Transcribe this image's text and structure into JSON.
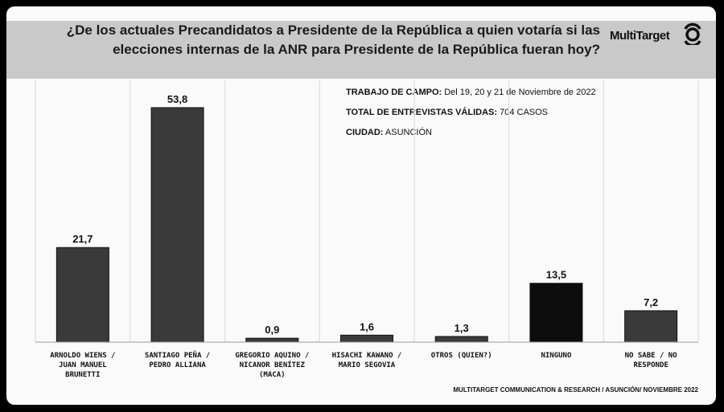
{
  "header": {
    "question": "¿De los actuales Precandidatos a Presidente de la República a quien votaría si las elecciones internas de la ANR para Presidente de la República fueran hoy?",
    "brand": "MultiTarget"
  },
  "meta": [
    {
      "label": "TRABAJO DE CAMPO:",
      "value": "Del 19, 20 y 21  de Noviembre  de  2022"
    },
    {
      "label": "TOTAL DE ENTREVISTAS VÁLIDAS:",
      "value": "704 CASOS"
    },
    {
      "label": "CIUDAD:",
      "value": "ASUNCIÓN"
    }
  ],
  "footer": "MULTITARGET COMMUNICATION & RESEARCH / ASUNCIÓN/ NOVIEMBRE  2022",
  "chart_data": {
    "type": "bar",
    "categories": [
      [
        "ARNOLDO WIENS /",
        "JUAN MANUEL",
        "BRUNETTI"
      ],
      [
        "SANTIAGO PEÑA /",
        "PEDRO ALLIANA"
      ],
      [
        "GREGORIO AQUINO /",
        "NICANOR BENÍTEZ",
        "(MACA)"
      ],
      [
        "HISACHI KAWANO /",
        "MARIO SEGOVIA"
      ],
      [
        "OTROS (QUIEN?)"
      ],
      [
        "NINGUNO"
      ],
      [
        "NO SABE / NO",
        "RESPONDE"
      ]
    ],
    "values": [
      21.7,
      53.8,
      0.9,
      1.6,
      1.3,
      13.5,
      7.2
    ],
    "value_labels": [
      "21,7",
      "53,8",
      "0,9",
      "1,6",
      "1,3",
      "13,5",
      "7,2"
    ],
    "bar_colors": [
      "#3a3a3a",
      "#3a3a3a",
      "#3a3a3a",
      "#3a3a3a",
      "#3a3a3a",
      "#0d0d0d",
      "#3a3a3a"
    ],
    "ylim": [
      0,
      53.8
    ],
    "grid": true
  }
}
